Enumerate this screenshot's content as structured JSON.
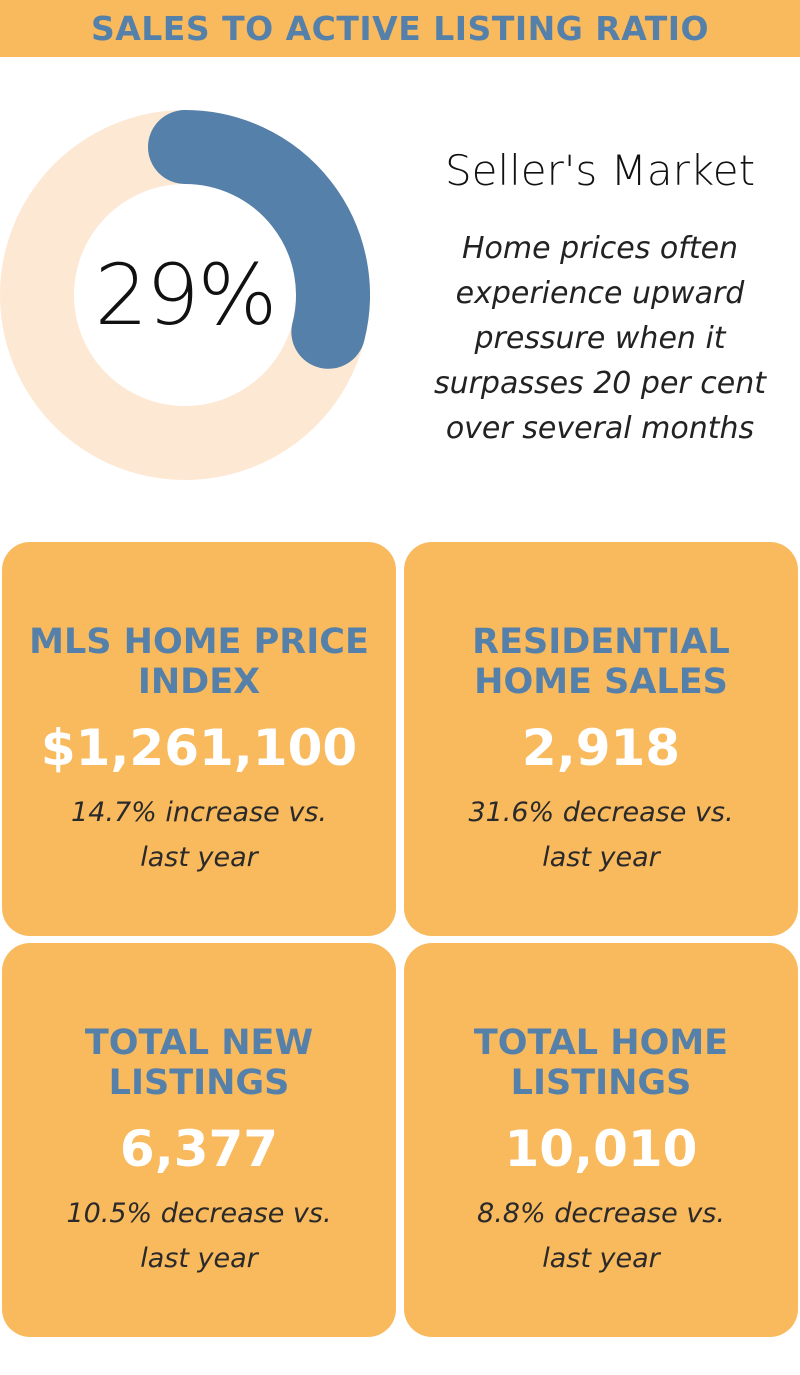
{
  "header": {
    "title": "SALES TO ACTIVE LISTING RATIO"
  },
  "ratio": {
    "display": "29%",
    "market_label": "Seller's Market",
    "description": "Home prices often experience upward pressure when it surpasses 20 per cent over several months"
  },
  "chart_data": {
    "type": "pie",
    "values": [
      29,
      71
    ],
    "colors": [
      "#5480aa",
      "#fde8d3"
    ]
  },
  "cards": [
    {
      "title": "MLS HOME PRICE INDEX",
      "value": "$1,261,100",
      "change": "14.7% increase vs. last year"
    },
    {
      "title": "RESIDENTIAL HOME SALES",
      "value": "2,918",
      "change": "31.6% decrease vs. last year"
    },
    {
      "title": "TOTAL NEW LISTINGS",
      "value": "6,377",
      "change": "10.5% decrease vs. last year"
    },
    {
      "title": "TOTAL HOME LISTINGS",
      "value": "10,010",
      "change": "8.8% decrease vs. last year"
    }
  ],
  "colors": {
    "accent": "#f9b95d",
    "title_blue": "#5480aa",
    "ring_track": "#fde8d3"
  }
}
